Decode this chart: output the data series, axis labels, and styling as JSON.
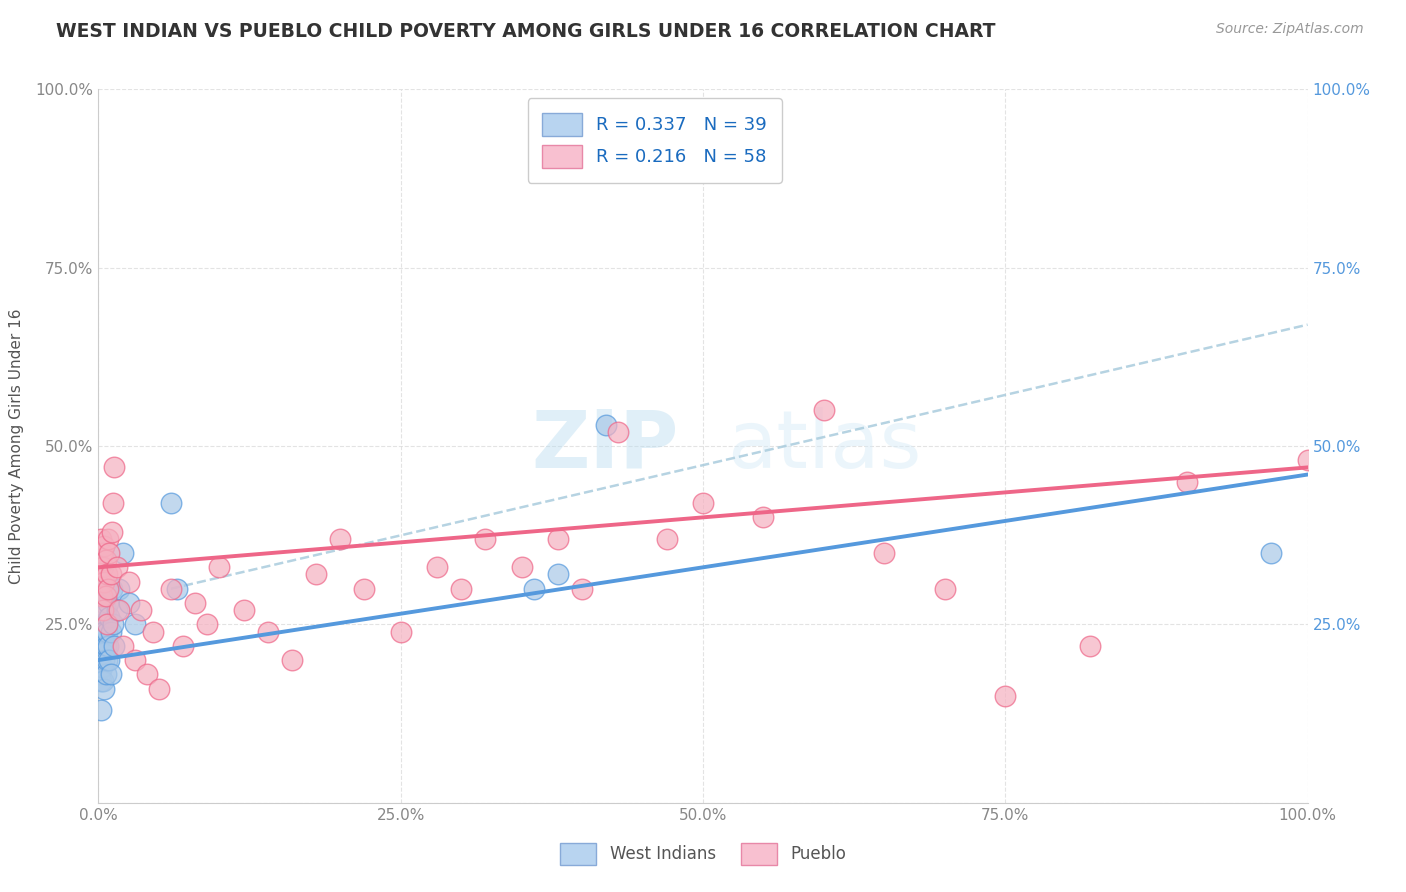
{
  "title": "WEST INDIAN VS PUEBLO CHILD POVERTY AMONG GIRLS UNDER 16 CORRELATION CHART",
  "source": "Source: ZipAtlas.com",
  "ylabel": "Child Poverty Among Girls Under 16",
  "west_indian_R": 0.337,
  "west_indian_N": 39,
  "pueblo_R": 0.216,
  "pueblo_N": 58,
  "west_indian_color": "#a8c8e8",
  "pueblo_color": "#f5b0c0",
  "west_indian_line_color": "#5599dd",
  "pueblo_line_color": "#ee6688",
  "trend_line_color": "#aaccdd",
  "background_color": "#ffffff",
  "watermark_zip": "ZIP",
  "watermark_atlas": "atlas",
  "west_indian_x": [
    0.001,
    0.002,
    0.002,
    0.003,
    0.003,
    0.003,
    0.004,
    0.004,
    0.004,
    0.005,
    0.005,
    0.005,
    0.005,
    0.006,
    0.006,
    0.006,
    0.007,
    0.007,
    0.007,
    0.008,
    0.008,
    0.009,
    0.009,
    0.01,
    0.01,
    0.011,
    0.012,
    0.013,
    0.015,
    0.017,
    0.02,
    0.025,
    0.03,
    0.06,
    0.065,
    0.36,
    0.38,
    0.42,
    0.97
  ],
  "west_indian_y": [
    0.18,
    0.13,
    0.17,
    0.19,
    0.22,
    0.25,
    0.17,
    0.21,
    0.24,
    0.16,
    0.2,
    0.24,
    0.28,
    0.18,
    0.22,
    0.27,
    0.2,
    0.24,
    0.3,
    0.22,
    0.28,
    0.2,
    0.26,
    0.18,
    0.24,
    0.3,
    0.25,
    0.22,
    0.27,
    0.3,
    0.35,
    0.28,
    0.25,
    0.42,
    0.3,
    0.3,
    0.32,
    0.53,
    0.35
  ],
  "pueblo_x": [
    0.001,
    0.002,
    0.002,
    0.003,
    0.003,
    0.004,
    0.004,
    0.005,
    0.005,
    0.006,
    0.006,
    0.007,
    0.007,
    0.008,
    0.008,
    0.009,
    0.01,
    0.011,
    0.012,
    0.013,
    0.015,
    0.017,
    0.02,
    0.025,
    0.03,
    0.035,
    0.04,
    0.045,
    0.05,
    0.06,
    0.07,
    0.08,
    0.09,
    0.1,
    0.12,
    0.14,
    0.16,
    0.18,
    0.2,
    0.22,
    0.25,
    0.28,
    0.3,
    0.32,
    0.35,
    0.38,
    0.4,
    0.43,
    0.47,
    0.5,
    0.55,
    0.6,
    0.65,
    0.7,
    0.75,
    0.82,
    0.9,
    1.0
  ],
  "pueblo_y": [
    0.33,
    0.31,
    0.37,
    0.29,
    0.35,
    0.27,
    0.33,
    0.31,
    0.36,
    0.29,
    0.34,
    0.25,
    0.32,
    0.3,
    0.37,
    0.35,
    0.32,
    0.38,
    0.42,
    0.47,
    0.33,
    0.27,
    0.22,
    0.31,
    0.2,
    0.27,
    0.18,
    0.24,
    0.16,
    0.3,
    0.22,
    0.28,
    0.25,
    0.33,
    0.27,
    0.24,
    0.2,
    0.32,
    0.37,
    0.3,
    0.24,
    0.33,
    0.3,
    0.37,
    0.33,
    0.37,
    0.3,
    0.52,
    0.37,
    0.42,
    0.4,
    0.55,
    0.35,
    0.3,
    0.15,
    0.22,
    0.45,
    0.48
  ],
  "xlim": [
    0.0,
    1.0
  ],
  "ylim": [
    0.0,
    1.0
  ],
  "xticks": [
    0.0,
    0.25,
    0.5,
    0.75,
    1.0
  ],
  "yticks": [
    0.0,
    0.25,
    0.5,
    0.75,
    1.0
  ],
  "xticklabels": [
    "0.0%",
    "25.0%",
    "50.0%",
    "75.0%",
    "100.0%"
  ],
  "yticklabels_left": [
    "",
    "25.0%",
    "50.0%",
    "75.0%",
    "100.0%"
  ],
  "yticklabels_right": [
    "",
    "25.0%",
    "50.0%",
    "75.0%",
    "100.0%"
  ],
  "wi_line_x0": 0.0,
  "wi_line_y0": 0.2,
  "wi_line_x1": 1.0,
  "wi_line_y1": 0.46,
  "pu_line_x0": 0.0,
  "pu_line_y0": 0.33,
  "pu_line_x1": 1.0,
  "pu_line_y1": 0.47,
  "dash_line_x0": 0.06,
  "dash_line_y0": 0.3,
  "dash_line_x1": 1.0,
  "dash_line_y1": 0.67
}
